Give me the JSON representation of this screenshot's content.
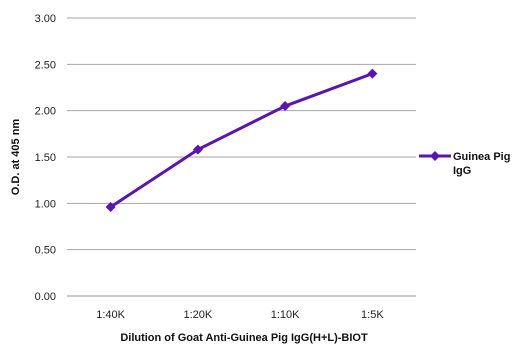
{
  "chart_data": {
    "type": "line",
    "categories": [
      "1:40K",
      "1:20K",
      "1:10K",
      "1:5K"
    ],
    "series": [
      {
        "name": "Guinea Pig IgG",
        "values": [
          0.96,
          1.58,
          2.05,
          2.4
        ]
      }
    ],
    "xlabel": "Dilution of Goat Anti-Guinea Pig IgG(H+L)-BIOT",
    "ylabel": "O.D. at 405 nm",
    "ylim": [
      0,
      3
    ],
    "yticks": [
      "0.00",
      "0.50",
      "1.00",
      "1.50",
      "2.00",
      "2.50",
      "3.00"
    ],
    "grid": true,
    "legend_position": "right",
    "legend_lines": [
      "Guinea Pig",
      "IgG"
    ],
    "series_color": "#5b13b5"
  }
}
